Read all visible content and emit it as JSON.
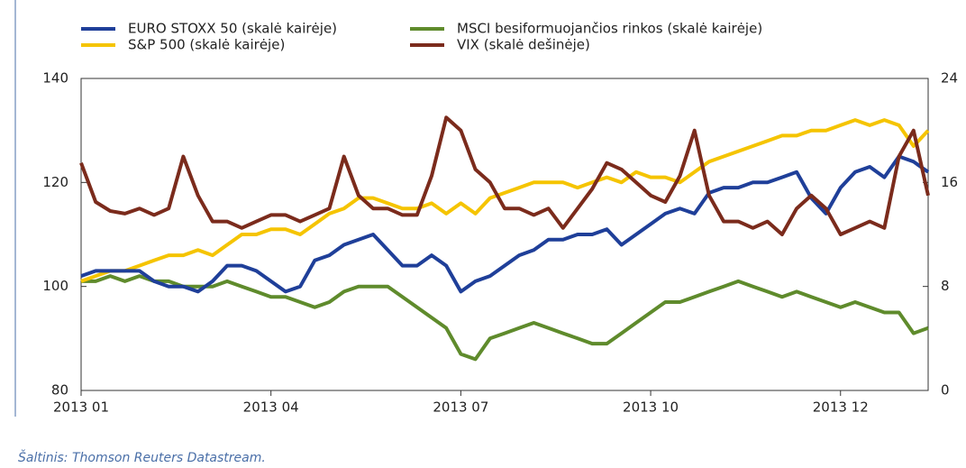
{
  "chart_data": {
    "type": "line",
    "x": [
      0,
      1,
      2,
      3,
      4,
      5,
      6,
      7,
      8,
      9,
      10,
      11,
      12,
      13,
      14,
      15,
      16,
      17,
      18,
      19,
      20,
      21,
      22,
      23,
      24,
      25,
      26,
      27,
      28,
      29,
      30,
      31,
      32,
      33,
      34,
      35,
      36,
      37,
      38,
      39,
      40,
      41,
      42,
      43,
      44,
      45,
      46,
      47,
      48,
      49,
      50,
      51,
      52,
      53,
      54,
      55,
      56,
      57,
      58
    ],
    "xlim": [
      0,
      58
    ],
    "xticks": [
      {
        "value": 0,
        "label": "2013 01"
      },
      {
        "value": 13,
        "label": "2013 04"
      },
      {
        "value": 26,
        "label": "2013 07"
      },
      {
        "value": 39,
        "label": "2013 10"
      },
      {
        "value": 52,
        "label": "2013 12"
      }
    ],
    "ylim": [
      80,
      140
    ],
    "yticks": [
      80,
      100,
      120,
      140
    ],
    "y2lim": [
      0,
      24
    ],
    "y2ticks": [
      0,
      8,
      16,
      24
    ],
    "grid": false,
    "series": [
      {
        "name": "EURO STOXX 50 (skalė kairėje)",
        "color": "#1f3f99",
        "values": [
          102,
          103,
          103,
          103,
          103,
          101,
          100,
          100,
          99,
          101,
          104,
          104,
          103,
          101,
          99,
          100,
          105,
          106,
          108,
          109,
          110,
          107,
          104,
          104,
          106,
          104,
          99,
          101,
          102,
          104,
          106,
          107,
          109,
          109,
          110,
          110,
          111,
          108,
          110,
          112,
          114,
          115,
          114,
          118,
          119,
          119,
          120,
          120,
          121,
          122,
          117,
          114,
          119,
          122,
          123,
          121,
          125,
          124,
          122
        ]
      },
      {
        "name": "S&P 500 (skalė kairėje)",
        "color": "#f5c400",
        "values": [
          101,
          102,
          103,
          103,
          104,
          105,
          106,
          106,
          107,
          106,
          108,
          110,
          110,
          111,
          111,
          110,
          112,
          114,
          115,
          117,
          117,
          116,
          115,
          115,
          116,
          114,
          116,
          114,
          117,
          118,
          119,
          120,
          120,
          120,
          119,
          120,
          121,
          120,
          122,
          121,
          121,
          120,
          122,
          124,
          125,
          126,
          127,
          128,
          129,
          129,
          130,
          130,
          131,
          132,
          131,
          132,
          131,
          127,
          130
        ]
      },
      {
        "name": "MSCI besiformuojančios rinkos (skalė kairėje)",
        "color": "#5f8b2c",
        "values": [
          101,
          101,
          102,
          101,
          102,
          101,
          101,
          100,
          100,
          100,
          101,
          100,
          99,
          98,
          98,
          97,
          96,
          97,
          99,
          100,
          100,
          100,
          98,
          96,
          94,
          92,
          87,
          86,
          90,
          91,
          92,
          93,
          92,
          91,
          90,
          89,
          89,
          91,
          93,
          95,
          97,
          97,
          98,
          99,
          100,
          101,
          100,
          99,
          98,
          99,
          98,
          97,
          96,
          97,
          96,
          95,
          95,
          91,
          92
        ]
      },
      {
        "name": "VIX (skalė dešinėje)",
        "color": "#7b2b1c",
        "axis": "y2",
        "values": [
          17.5,
          14.5,
          13.8,
          13.6,
          14,
          13.5,
          14,
          18,
          15,
          13,
          13,
          12.5,
          13,
          13.5,
          13.5,
          13,
          13.5,
          14,
          18,
          15,
          14,
          14,
          13.5,
          13.5,
          16.5,
          21,
          20,
          17,
          16,
          14,
          14,
          13.5,
          14,
          12.5,
          14,
          15.5,
          17.5,
          17,
          16,
          15,
          14.5,
          16.5,
          20,
          15,
          13,
          13,
          12.5,
          13,
          12,
          14,
          15,
          14,
          12,
          12.5,
          13,
          12.5,
          18,
          20,
          15
        ]
      }
    ],
    "source": "Šaltinis: Thomson Reuters Datastream."
  }
}
